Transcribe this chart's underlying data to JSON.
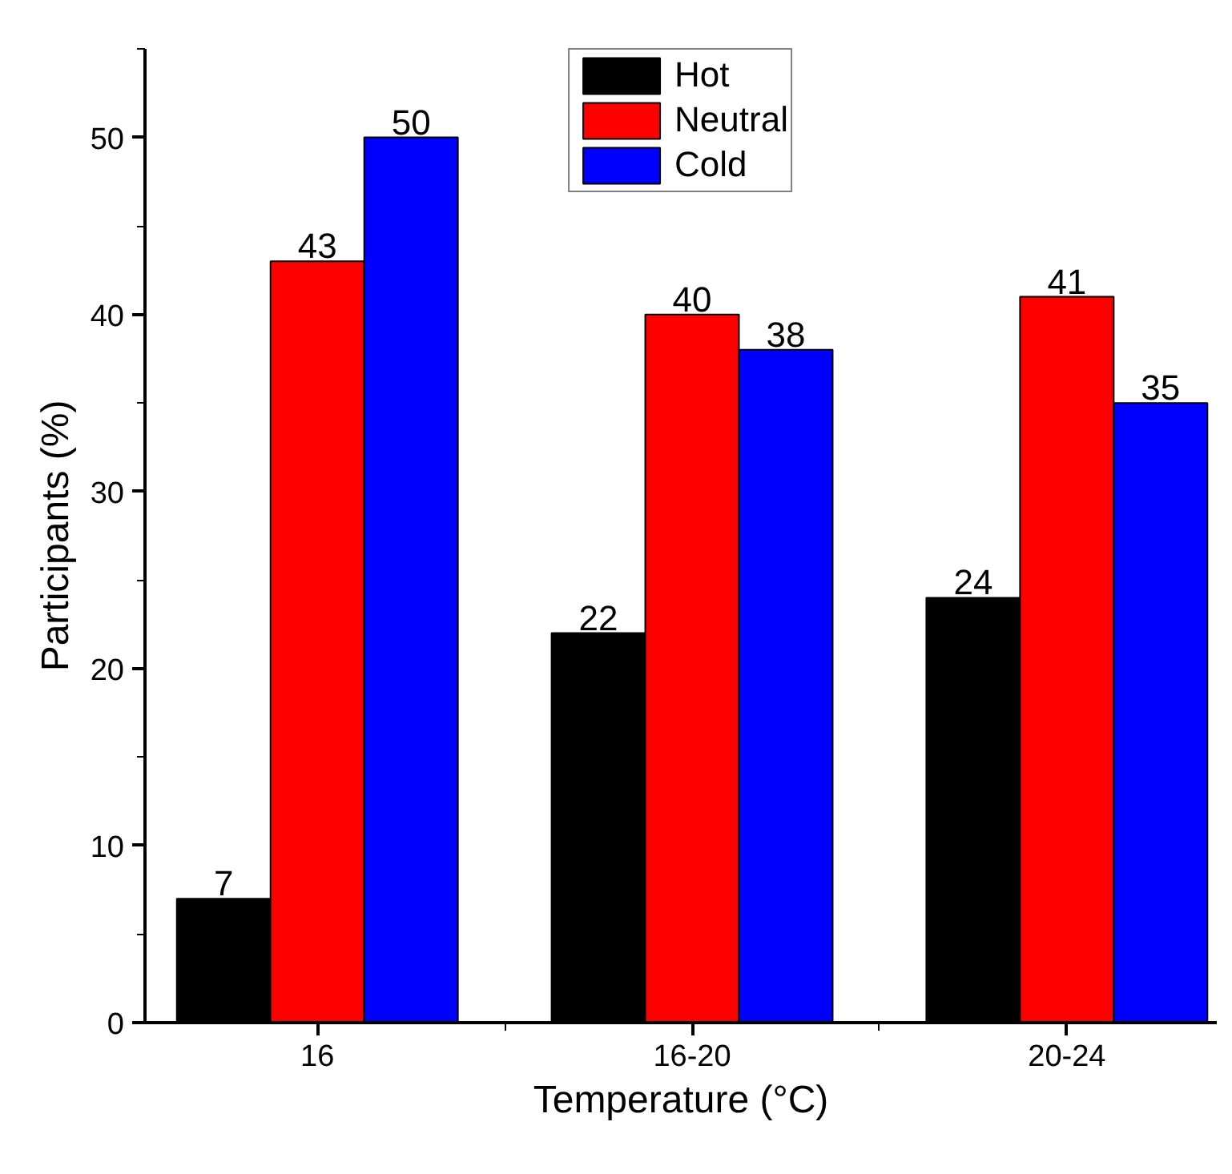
{
  "chart_data": {
    "type": "bar",
    "xlabel": "Temperature (°C)",
    "ylabel": "Participants (%)",
    "categories": [
      "16",
      "16-20",
      "20-24"
    ],
    "series": [
      {
        "name": "Hot",
        "color": "#000000",
        "values": [
          7,
          22,
          24
        ]
      },
      {
        "name": "Neutral",
        "color": "#ff0000",
        "values": [
          43,
          40,
          41
        ]
      },
      {
        "name": "Cold",
        "color": "#0000ff",
        "values": [
          50,
          38,
          35
        ]
      }
    ],
    "ylim": [
      0,
      55
    ],
    "yticks": [
      0,
      10,
      20,
      30,
      40,
      50
    ],
    "data_labels": true,
    "legend": "top",
    "grid": false
  }
}
